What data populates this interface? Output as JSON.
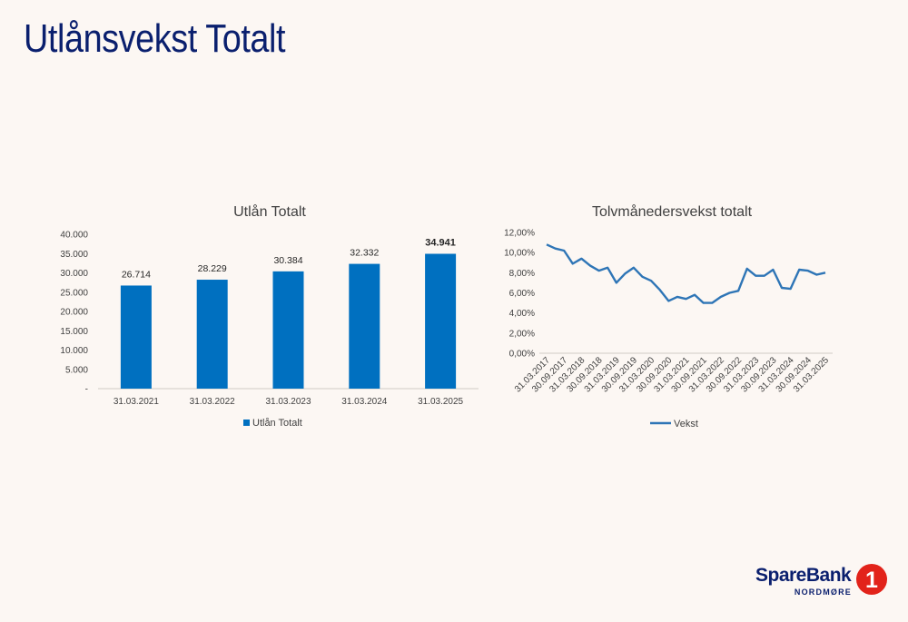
{
  "slide": {
    "title": "Utlånsvekst Totalt"
  },
  "colors": {
    "title": "#0a1f6e",
    "bar": "#0070c0",
    "line": "#2e75b6",
    "logo_red": "#e2231a",
    "logo_navy": "#0a1f6e"
  },
  "logo": {
    "name": "SpareBank",
    "number": "1",
    "region": "NORDMØRE"
  },
  "chart_data": [
    {
      "type": "bar",
      "title": "Utlån Totalt",
      "categories": [
        "31.03.2021",
        "31.03.2022",
        "31.03.2023",
        "31.03.2024",
        "31.03.2025"
      ],
      "series": [
        {
          "name": "Utlån Totalt",
          "values": [
            26714,
            28229,
            30384,
            32332,
            34941
          ]
        }
      ],
      "data_labels": [
        "26.714",
        "28.229",
        "30.384",
        "32.332",
        "34.941"
      ],
      "highlighted_label_index": 4,
      "ylim": [
        0,
        40000
      ],
      "yticks": [
        0,
        5000,
        10000,
        15000,
        20000,
        25000,
        30000,
        35000,
        40000
      ],
      "ytick_labels": [
        "-",
        "5.000",
        "10.000",
        "15.000",
        "20.000",
        "25.000",
        "30.000",
        "35.000",
        "40.000"
      ],
      "grid": false,
      "legend": "bottom",
      "xlabel": "",
      "ylabel": ""
    },
    {
      "type": "line",
      "title": "Tolvmånedersvekst totalt",
      "x": [
        "31.03.2017",
        "30.06.2017",
        "30.09.2017",
        "31.12.2017",
        "31.03.2018",
        "30.06.2018",
        "30.09.2018",
        "31.12.2018",
        "31.03.2019",
        "30.06.2019",
        "30.09.2019",
        "31.12.2019",
        "31.03.2020",
        "30.06.2020",
        "30.09.2020",
        "31.12.2020",
        "31.03.2021",
        "30.06.2021",
        "30.09.2021",
        "31.12.2021",
        "31.03.2022",
        "30.06.2022",
        "30.09.2022",
        "31.12.2022",
        "31.03.2023",
        "30.06.2023",
        "30.09.2023",
        "31.12.2023",
        "31.03.2024",
        "30.06.2024",
        "30.09.2024",
        "31.12.2024",
        "31.03.2025"
      ],
      "xtick_labels": [
        "31.03.2017",
        "30.09.2017",
        "31.03.2018",
        "30.09.2018",
        "31.03.2019",
        "30.09.2019",
        "31.03.2020",
        "30.09.2020",
        "31.03.2021",
        "30.09.2021",
        "31.03.2022",
        "30.09.2022",
        "31.03.2023",
        "30.09.2023",
        "31.03.2024",
        "30.09.2024",
        "31.03.2025"
      ],
      "series": [
        {
          "name": "Vekst",
          "values": [
            10.8,
            10.4,
            10.2,
            8.9,
            9.4,
            8.7,
            8.2,
            8.5,
            7.0,
            7.9,
            8.5,
            7.6,
            7.2,
            6.3,
            5.2,
            5.6,
            5.4,
            5.8,
            5.0,
            5.0,
            5.6,
            6.0,
            6.2,
            8.4,
            7.7,
            7.7,
            8.3,
            6.5,
            6.4,
            8.3,
            8.2,
            7.8,
            8.0
          ]
        }
      ],
      "ylim": [
        0,
        12
      ],
      "yticks": [
        0,
        2,
        4,
        6,
        8,
        10,
        12
      ],
      "ytick_labels": [
        "0,00%",
        "2,00%",
        "4,00%",
        "6,00%",
        "8,00%",
        "10,00%",
        "12,00%"
      ],
      "grid": false,
      "legend": "bottom",
      "xlabel": "",
      "ylabel": ""
    }
  ]
}
